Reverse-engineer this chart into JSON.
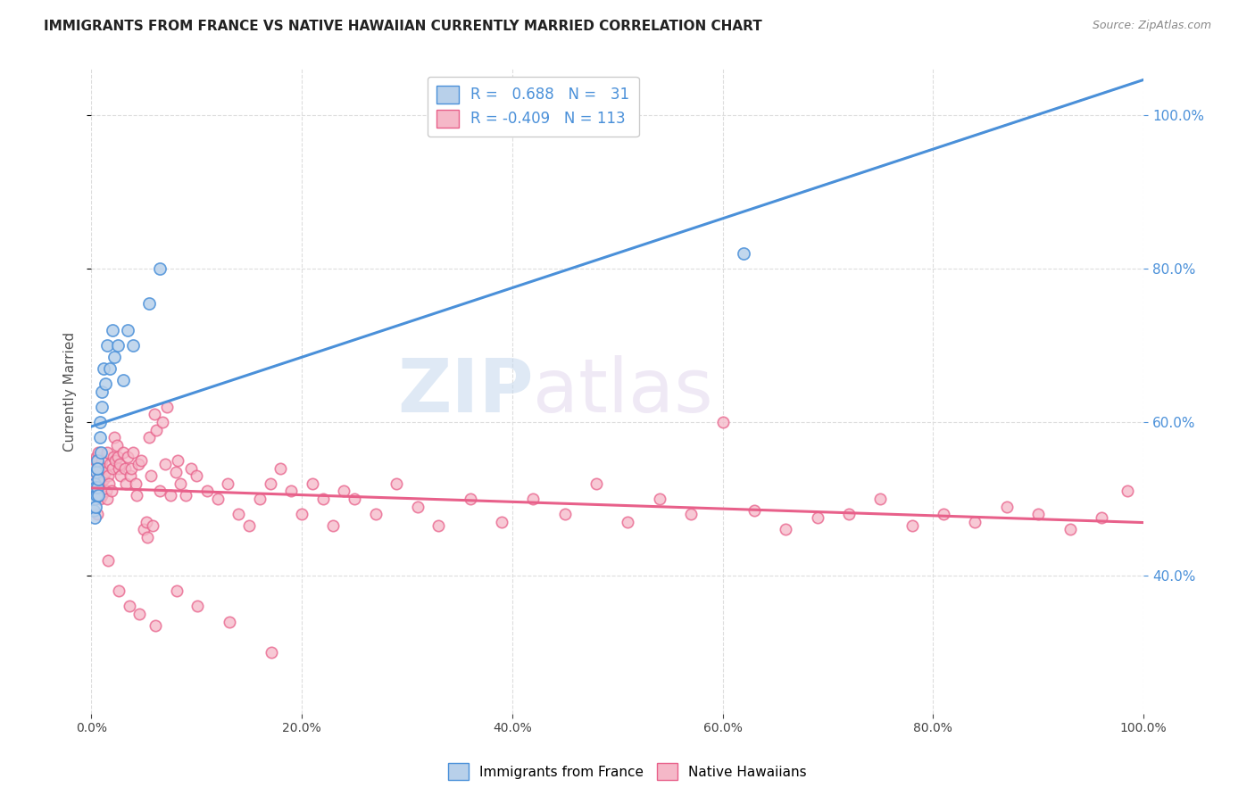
{
  "title": "IMMIGRANTS FROM FRANCE VS NATIVE HAWAIIAN CURRENTLY MARRIED CORRELATION CHART",
  "source": "Source: ZipAtlas.com",
  "ylabel": "Currently Married",
  "legend_label1": "Immigrants from France",
  "legend_label2": "Native Hawaiians",
  "r1": 0.688,
  "n1": 31,
  "r2": -0.409,
  "n2": 113,
  "color_blue_fill": "#b8d0ea",
  "color_pink_fill": "#f5b8c8",
  "color_blue_line": "#4a90d9",
  "color_pink_line": "#e8608a",
  "watermark_zip": "ZIP",
  "watermark_atlas": "atlas",
  "blue_x": [
    0.002,
    0.003,
    0.003,
    0.004,
    0.005,
    0.005,
    0.006,
    0.006,
    0.007,
    0.007,
    0.008,
    0.008,
    0.009,
    0.01,
    0.01,
    0.012,
    0.013,
    0.015,
    0.018,
    0.02,
    0.022,
    0.025,
    0.03,
    0.035,
    0.04,
    0.055,
    0.065,
    0.003,
    0.004,
    0.006,
    0.62
  ],
  "blue_y": [
    0.485,
    0.5,
    0.52,
    0.515,
    0.505,
    0.535,
    0.515,
    0.55,
    0.505,
    0.525,
    0.58,
    0.6,
    0.56,
    0.62,
    0.64,
    0.67,
    0.65,
    0.7,
    0.67,
    0.72,
    0.685,
    0.7,
    0.655,
    0.72,
    0.7,
    0.755,
    0.8,
    0.475,
    0.49,
    0.54,
    0.82
  ],
  "pink_x": [
    0.002,
    0.003,
    0.004,
    0.005,
    0.005,
    0.006,
    0.007,
    0.007,
    0.008,
    0.008,
    0.009,
    0.01,
    0.01,
    0.011,
    0.012,
    0.013,
    0.014,
    0.015,
    0.015,
    0.016,
    0.017,
    0.018,
    0.019,
    0.02,
    0.021,
    0.022,
    0.023,
    0.024,
    0.025,
    0.026,
    0.027,
    0.028,
    0.03,
    0.032,
    0.033,
    0.035,
    0.037,
    0.038,
    0.04,
    0.042,
    0.043,
    0.045,
    0.047,
    0.05,
    0.052,
    0.053,
    0.055,
    0.057,
    0.058,
    0.06,
    0.062,
    0.065,
    0.068,
    0.07,
    0.072,
    0.075,
    0.08,
    0.082,
    0.085,
    0.09,
    0.095,
    0.1,
    0.11,
    0.12,
    0.13,
    0.14,
    0.15,
    0.16,
    0.17,
    0.18,
    0.19,
    0.2,
    0.21,
    0.22,
    0.23,
    0.24,
    0.25,
    0.27,
    0.29,
    0.31,
    0.33,
    0.36,
    0.39,
    0.42,
    0.45,
    0.48,
    0.51,
    0.54,
    0.57,
    0.6,
    0.63,
    0.66,
    0.69,
    0.72,
    0.75,
    0.78,
    0.81,
    0.84,
    0.87,
    0.9,
    0.93,
    0.96,
    0.985,
    0.006,
    0.016,
    0.026,
    0.036,
    0.046,
    0.061,
    0.081,
    0.101,
    0.131,
    0.171
  ],
  "pink_y": [
    0.53,
    0.52,
    0.55,
    0.51,
    0.555,
    0.54,
    0.53,
    0.56,
    0.5,
    0.54,
    0.52,
    0.55,
    0.505,
    0.54,
    0.525,
    0.535,
    0.51,
    0.5,
    0.56,
    0.53,
    0.52,
    0.545,
    0.51,
    0.54,
    0.555,
    0.58,
    0.55,
    0.57,
    0.555,
    0.54,
    0.545,
    0.53,
    0.56,
    0.54,
    0.52,
    0.555,
    0.53,
    0.54,
    0.56,
    0.52,
    0.505,
    0.545,
    0.55,
    0.46,
    0.47,
    0.45,
    0.58,
    0.53,
    0.465,
    0.61,
    0.59,
    0.51,
    0.6,
    0.545,
    0.62,
    0.505,
    0.535,
    0.55,
    0.52,
    0.505,
    0.54,
    0.53,
    0.51,
    0.5,
    0.52,
    0.48,
    0.465,
    0.5,
    0.52,
    0.54,
    0.51,
    0.48,
    0.52,
    0.5,
    0.465,
    0.51,
    0.5,
    0.48,
    0.52,
    0.49,
    0.465,
    0.5,
    0.47,
    0.5,
    0.48,
    0.52,
    0.47,
    0.5,
    0.48,
    0.6,
    0.485,
    0.46,
    0.475,
    0.48,
    0.5,
    0.465,
    0.48,
    0.47,
    0.49,
    0.48,
    0.46,
    0.475,
    0.51,
    0.48,
    0.42,
    0.38,
    0.36,
    0.35,
    0.335,
    0.38,
    0.36,
    0.34,
    0.3
  ],
  "xlim": [
    0.0,
    1.0
  ],
  "ylim": [
    0.22,
    1.06
  ],
  "yticks": [
    0.4,
    0.6,
    0.8,
    1.0
  ],
  "xticks": [
    0.0,
    0.2,
    0.4,
    0.6,
    0.8,
    1.0
  ],
  "background_color": "#ffffff",
  "grid_color": "#dddddd",
  "title_fontsize": 11,
  "source_fontsize": 9
}
